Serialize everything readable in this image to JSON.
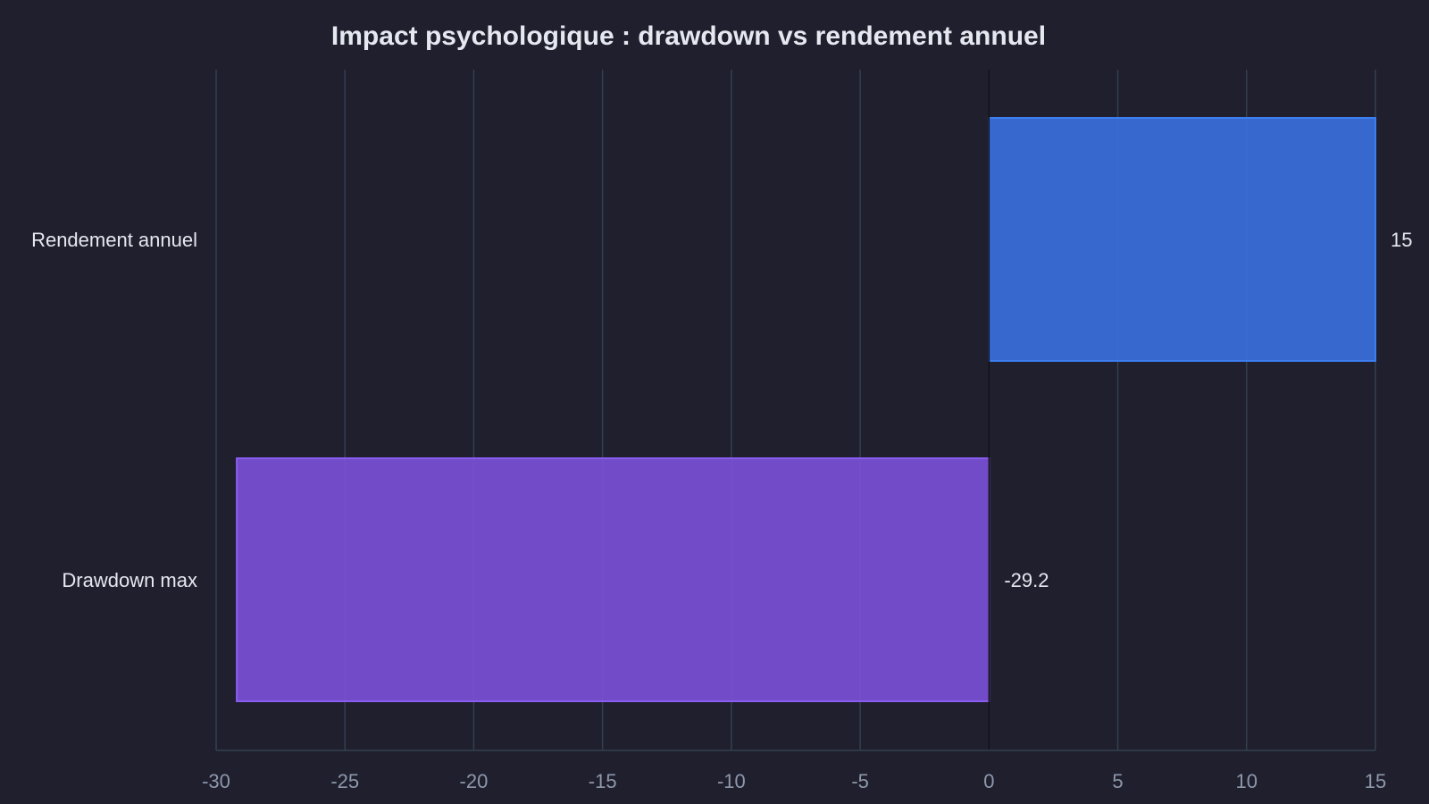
{
  "chart_data": {
    "type": "bar",
    "orientation": "horizontal",
    "title": "Impact psychologique : drawdown vs rendement annuel",
    "xlabel": "",
    "ylabel": "",
    "categories": [
      "Rendement annuel",
      "Drawdown max"
    ],
    "values": [
      15,
      -29.2
    ],
    "data_labels": [
      "15",
      "-29.2"
    ],
    "xlim": [
      -30,
      15
    ],
    "xticks": [
      -30,
      -25,
      -20,
      -15,
      -10,
      -5,
      0,
      5,
      10,
      15
    ],
    "xtick_labels": [
      "-30",
      "-25",
      "-20",
      "-15",
      "-10",
      "-5",
      "0",
      "5",
      "10",
      "15"
    ],
    "grid": "vertical",
    "legend": "none",
    "colors": {
      "background": "#1f1f2e",
      "bars": [
        "#3a6fdc",
        "#7a50d6"
      ],
      "bar_edges": [
        "#3c7ef0",
        "#8a5cf0"
      ],
      "grid": "#33404f",
      "zero_line": "#111118",
      "title": "#e6e8f0",
      "category_labels": "#e6e8f0",
      "tick_labels": "#8e98ab",
      "data_labels": "#e6e8f0"
    }
  }
}
